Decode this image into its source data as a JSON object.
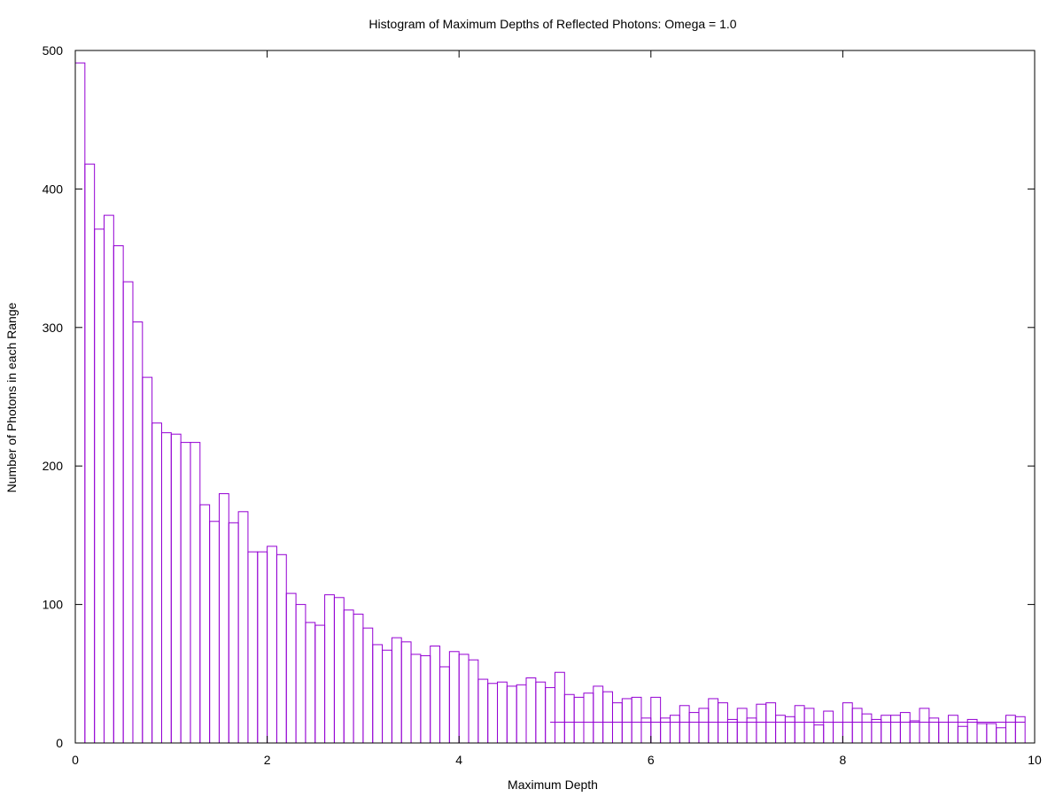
{
  "chart_data": {
    "type": "bar",
    "title": "Histogram of Maximum Depths of Reflected Photons: Omega = 1.0",
    "xlabel": "Maximum Depth",
    "ylabel": "Number of Photons in each Range",
    "xlim": [
      0,
      10
    ],
    "ylim": [
      0,
      500
    ],
    "x_ticks": [
      "0",
      "2",
      "4",
      "6",
      "8",
      "10"
    ],
    "y_ticks": [
      "0",
      "100",
      "200",
      "300",
      "400",
      "500"
    ],
    "x_tick_values": [
      0,
      2,
      4,
      6,
      8,
      10
    ],
    "y_tick_values": [
      0,
      100,
      200,
      300,
      400,
      500
    ],
    "grid": false,
    "legend": "none",
    "series_color": "#9400d3",
    "bin_width": 0.1,
    "bin_starts": [
      0.0,
      0.1,
      0.2,
      0.3,
      0.4,
      0.5,
      0.6,
      0.7,
      0.8,
      0.9,
      1.0,
      1.1,
      1.2,
      1.3,
      1.4,
      1.5,
      1.6,
      1.7,
      1.8,
      1.9,
      2.0,
      2.1,
      2.2,
      2.3,
      2.4,
      2.5,
      2.6,
      2.7,
      2.8,
      2.9,
      3.0,
      3.1,
      3.2,
      3.3,
      3.4,
      3.5,
      3.6,
      3.7,
      3.8,
      3.9,
      4.0,
      4.1,
      4.2,
      4.3,
      4.4,
      4.5,
      4.6,
      4.7,
      4.8,
      4.9,
      5.0,
      5.1,
      5.2,
      5.3,
      5.4,
      5.5,
      5.6,
      5.7,
      5.8,
      5.9,
      6.0,
      6.1,
      6.2,
      6.3,
      6.4,
      6.5,
      6.6,
      6.7,
      6.8,
      6.9,
      7.0,
      7.1,
      7.2,
      7.3,
      7.4,
      7.5,
      7.6,
      7.7,
      7.8,
      7.9,
      8.0,
      8.1,
      8.2,
      8.3,
      8.4,
      8.5,
      8.6,
      8.7,
      8.8,
      8.9,
      9.0,
      9.1,
      9.2,
      9.3,
      9.4,
      9.5,
      9.6,
      9.7,
      9.8
    ],
    "values": [
      491,
      418,
      371,
      381,
      359,
      333,
      304,
      264,
      231,
      224,
      223,
      217,
      217,
      172,
      160,
      180,
      159,
      167,
      138,
      138,
      142,
      136,
      108,
      100,
      87,
      85,
      107,
      105,
      96,
      93,
      83,
      71,
      67,
      76,
      73,
      64,
      63,
      70,
      55,
      66,
      64,
      60,
      46,
      43,
      44,
      41,
      42,
      47,
      44,
      40,
      51,
      35,
      33,
      36,
      41,
      37,
      29,
      32,
      33,
      18,
      33,
      18,
      20,
      27,
      22,
      25,
      32,
      29,
      17,
      25,
      18,
      28,
      29,
      20,
      19,
      27,
      25,
      13,
      23,
      15,
      29,
      25,
      21,
      17,
      20,
      20,
      22,
      16,
      25,
      18,
      15,
      20,
      12,
      17,
      14,
      14,
      11,
      20,
      19
    ],
    "baseline_value": 15,
    "baseline_range": [
      4.95,
      9.9
    ]
  }
}
